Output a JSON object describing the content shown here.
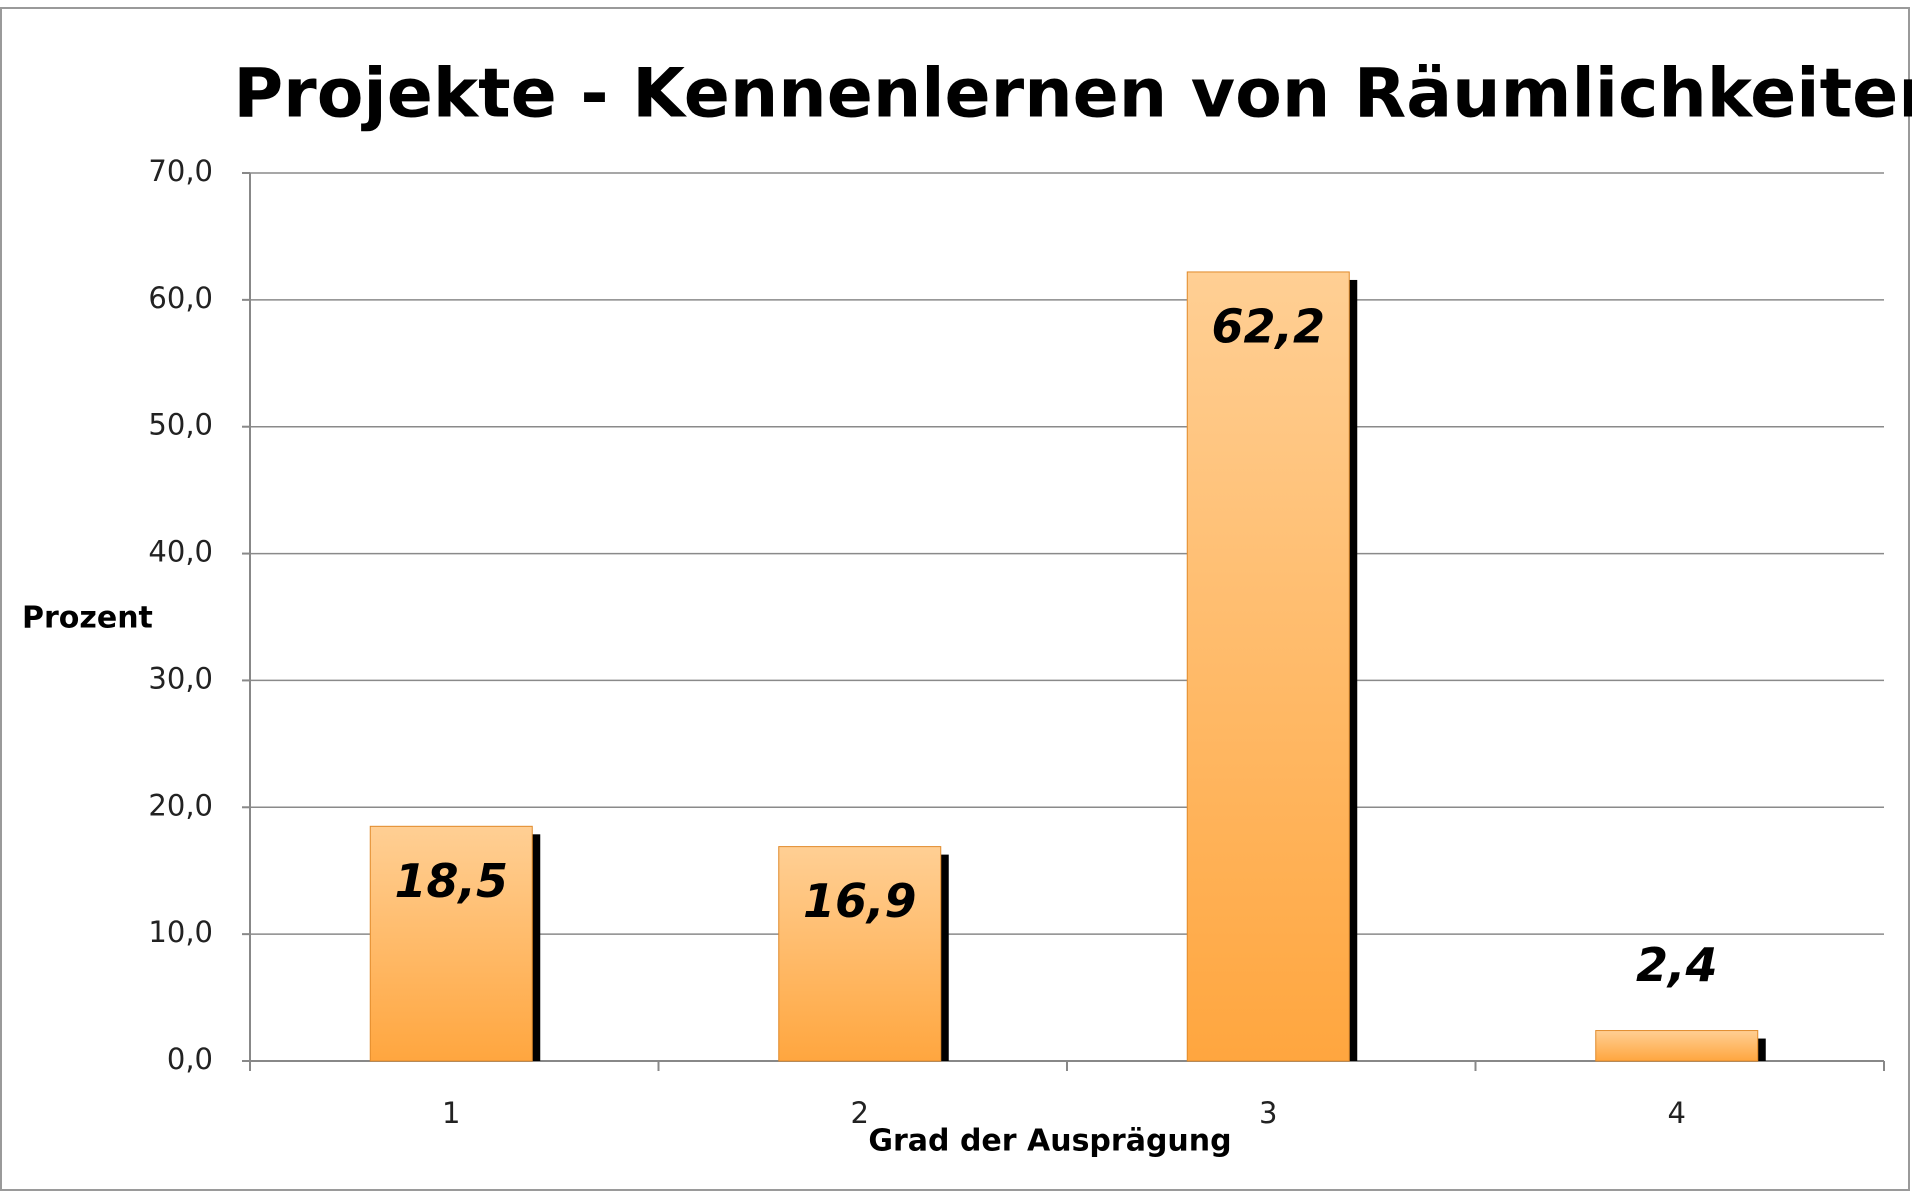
{
  "chart_data": {
    "type": "bar",
    "title": "Projekte - Kennenlernen von Räumlichkeiten",
    "y_label": "Prozent",
    "x_label": "Grad der Ausprägung",
    "categories": [
      "1",
      "2",
      "3",
      "4"
    ],
    "values": [
      18.5,
      16.9,
      62.2,
      2.4
    ],
    "value_labels": [
      "18,5",
      "16,9",
      "62,2",
      "2,4"
    ],
    "color": "#ffa63f",
    "ylim": [
      0,
      70
    ],
    "yticks": [
      {
        "value": 0,
        "label": "0,0"
      },
      {
        "value": 10,
        "label": "10,0"
      },
      {
        "value": 20,
        "label": "20,0"
      },
      {
        "value": 30,
        "label": "30,0"
      },
      {
        "value": 40,
        "label": "40,0"
      },
      {
        "value": 50,
        "label": "50,0"
      },
      {
        "value": 60,
        "label": "60,0"
      },
      {
        "value": 70,
        "label": "70,0"
      }
    ],
    "grid": true
  }
}
